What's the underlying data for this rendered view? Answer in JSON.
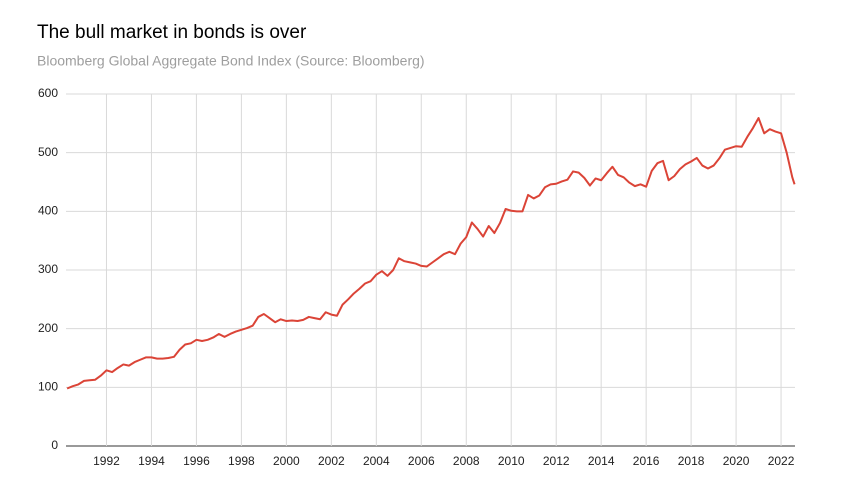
{
  "chart_data": {
    "type": "line",
    "title": "The bull market in bonds is over",
    "subtitle": "Bloomberg Global Aggregate Bond Index (Source: Bloomberg)",
    "x": [
      1990.25,
      1990.5,
      1990.75,
      1991,
      1991.25,
      1991.5,
      1991.75,
      1992,
      1992.25,
      1992.5,
      1992.75,
      1993,
      1993.25,
      1993.5,
      1993.75,
      1994,
      1994.25,
      1994.5,
      1994.75,
      1995,
      1995.25,
      1995.5,
      1995.75,
      1996,
      1996.25,
      1996.5,
      1996.75,
      1997,
      1997.25,
      1997.5,
      1997.75,
      1998,
      1998.25,
      1998.5,
      1998.75,
      1999,
      1999.25,
      1999.5,
      1999.75,
      2000,
      2000.25,
      2000.5,
      2000.75,
      2001,
      2001.25,
      2001.5,
      2001.75,
      2002,
      2002.25,
      2002.5,
      2002.75,
      2003,
      2003.25,
      2003.5,
      2003.75,
      2004,
      2004.25,
      2004.5,
      2004.75,
      2005,
      2005.25,
      2005.5,
      2005.75,
      2006,
      2006.25,
      2006.5,
      2006.75,
      2007,
      2007.25,
      2007.5,
      2007.75,
      2008,
      2008.25,
      2008.5,
      2008.75,
      2009,
      2009.25,
      2009.5,
      2009.75,
      2010,
      2010.25,
      2010.5,
      2010.75,
      2011,
      2011.25,
      2011.5,
      2011.75,
      2012,
      2012.25,
      2012.5,
      2012.75,
      2013,
      2013.25,
      2013.5,
      2013.75,
      2014,
      2014.25,
      2014.5,
      2014.75,
      2015,
      2015.25,
      2015.5,
      2015.75,
      2016,
      2016.25,
      2016.5,
      2016.75,
      2017,
      2017.25,
      2017.5,
      2017.75,
      2018,
      2018.25,
      2018.5,
      2018.75,
      2019,
      2019.25,
      2019.5,
      2019.75,
      2020,
      2020.25,
      2020.5,
      2020.75,
      2021,
      2021.25,
      2021.5,
      2021.75,
      2022,
      2022.25,
      2022.5,
      2022.6
    ],
    "series": [
      {
        "name": "Bloomberg Global Aggregate Bond Index",
        "color": "#db4437",
        "values": [
          98,
          102,
          105,
          111,
          112,
          113,
          120,
          129,
          126,
          133,
          139,
          137,
          143,
          147,
          151,
          151,
          149,
          149,
          150,
          152,
          164,
          173,
          175,
          181,
          179,
          181,
          185,
          191,
          186,
          191,
          195,
          198,
          201,
          205,
          220,
          225,
          218,
          211,
          216,
          213,
          214,
          213,
          215,
          220,
          218,
          216,
          228,
          224,
          222,
          241,
          250,
          260,
          268,
          277,
          281,
          292,
          298,
          290,
          300,
          320,
          315,
          313,
          311,
          307,
          306,
          313,
          320,
          327,
          331,
          327,
          345,
          356,
          381,
          370,
          357,
          375,
          363,
          380,
          404,
          401,
          400,
          400,
          428,
          422,
          427,
          441,
          446,
          447,
          451,
          454,
          468,
          466,
          457,
          444,
          456,
          453,
          465,
          476,
          462,
          458,
          449,
          443,
          446,
          442,
          469,
          482,
          486,
          453,
          460,
          472,
          480,
          485,
          491,
          478,
          473,
          478,
          490,
          505,
          508,
          511,
          510,
          527,
          542,
          559,
          533,
          540,
          536,
          533,
          500,
          458,
          446
        ]
      }
    ],
    "xlim": [
      1990.2,
      2022.62
    ],
    "xticks": [
      1992,
      1994,
      1996,
      1998,
      2000,
      2002,
      2004,
      2006,
      2008,
      2010,
      2012,
      2014,
      2016,
      2018,
      2020,
      2022
    ],
    "ylim": [
      0,
      600
    ],
    "yticks": [
      0,
      100,
      200,
      300,
      400,
      500,
      600
    ],
    "grid": true
  }
}
